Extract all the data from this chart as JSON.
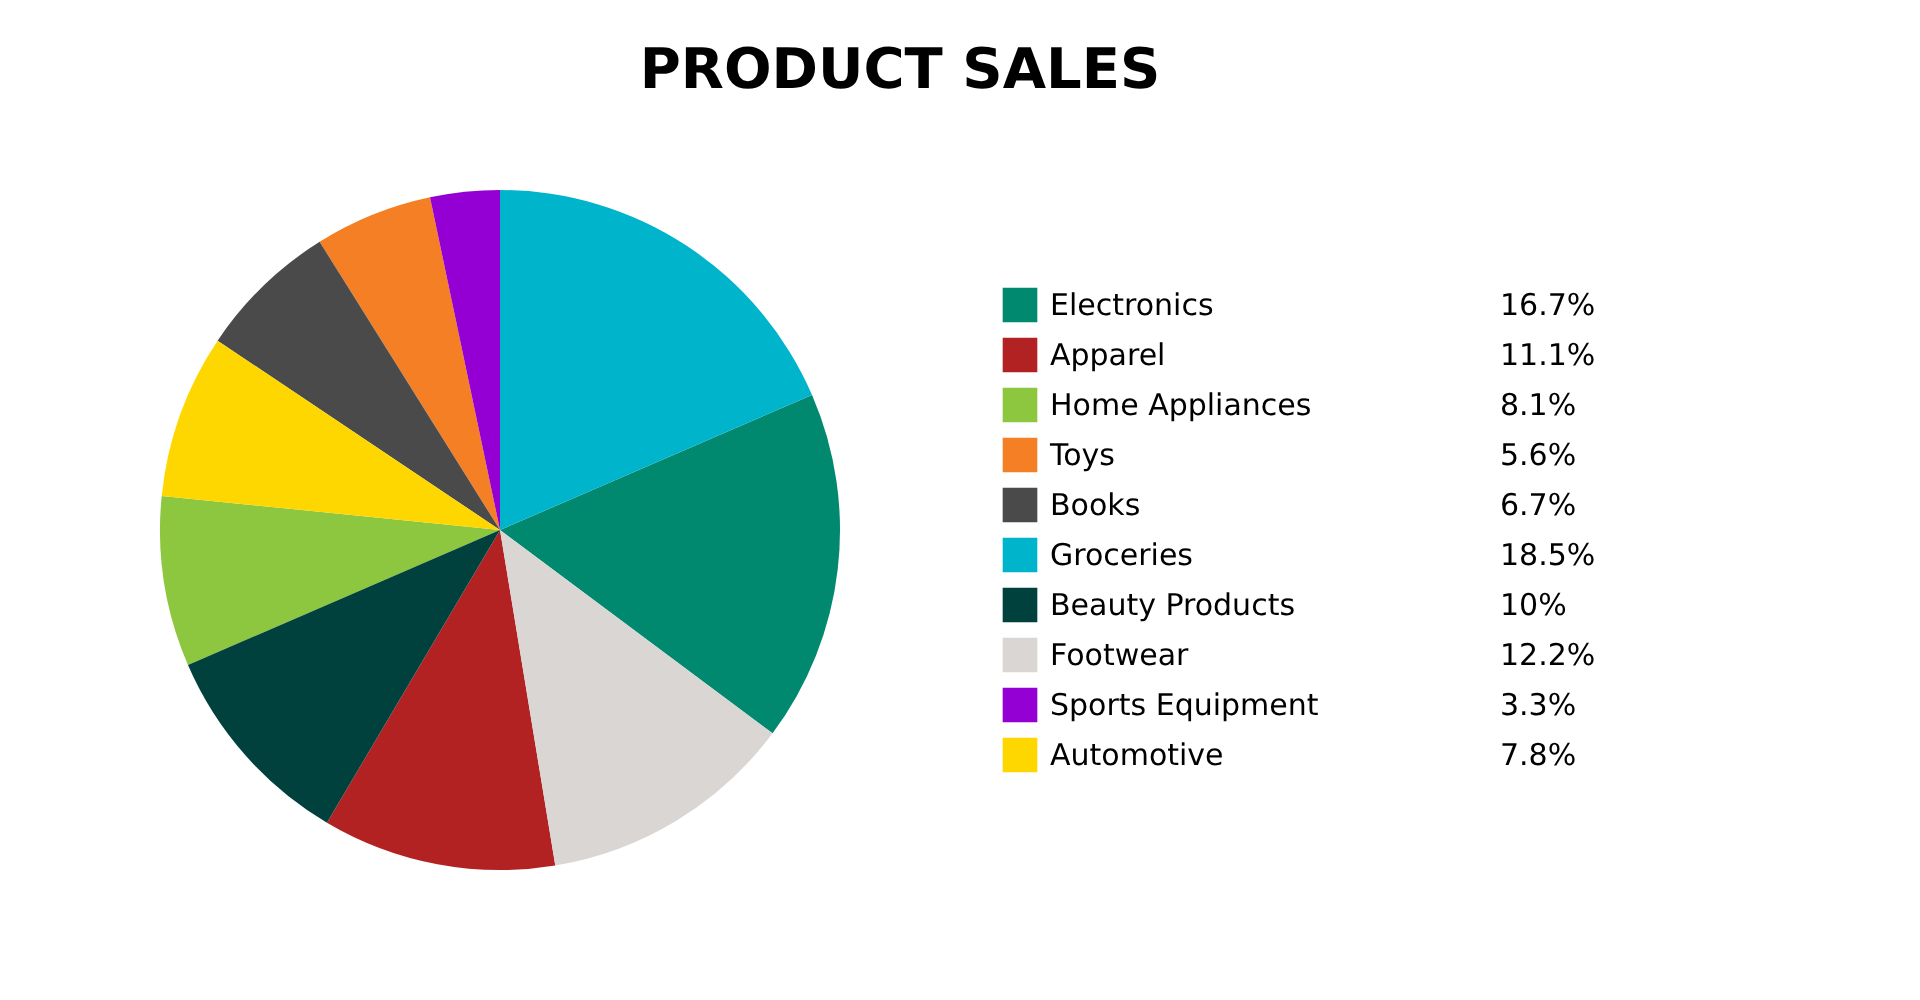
{
  "chart_data": {
    "type": "pie",
    "title": "PRODUCT SALES",
    "categories": [
      "Electronics",
      "Apparel",
      "Home Appliances",
      "Toys",
      "Books",
      "Groceries",
      "Beauty Products",
      "Footwear",
      "Sports Equipment",
      "Automotive"
    ],
    "values": [
      16.7,
      11.1,
      8.1,
      5.6,
      6.7,
      18.5,
      10,
      12.2,
      3.3,
      7.8
    ],
    "value_labels": [
      "16.7%",
      "11.1%",
      "8.1%",
      "5.6%",
      "6.7%",
      "18.5%",
      "10%",
      "12.2%",
      "3.3%",
      "7.8%"
    ],
    "colors": [
      "#00896f",
      "#b22222",
      "#8dc63f",
      "#f47f24",
      "#4a4a4a",
      "#00b4cc",
      "#00403d",
      "#d9d6d4",
      "#9400d3",
      "#ffd700"
    ],
    "legend": "right"
  }
}
